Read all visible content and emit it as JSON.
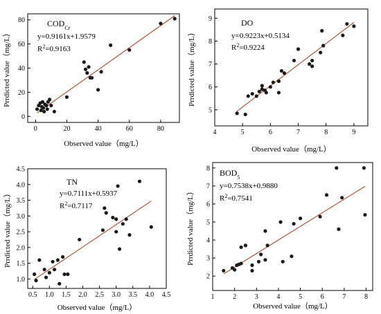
{
  "colors": {
    "point": "#1a1a1a",
    "fit_line": "#b5482a",
    "axis": "#000000",
    "background": "#ffffff"
  },
  "chart_data": [
    {
      "type": "scatter",
      "id": "codcr",
      "title": "COD",
      "title_subscript": "Cr",
      "equation": "y=0.9161x+1.9579",
      "r2_label": "R",
      "r2_sup": "2",
      "r2_value": "=0.9163",
      "xlabel": "Observed value（mg/L）",
      "ylabel": "Prrdicted value（mg/L）",
      "xlim": [
        -5,
        92
      ],
      "ylim": [
        -5,
        85
      ],
      "xticks": [
        0,
        20,
        40,
        60,
        80
      ],
      "yticks": [
        0,
        20,
        40,
        60,
        80
      ],
      "fit": {
        "slope": 0.9161,
        "intercept": 1.9579
      },
      "points": [
        {
          "x": 1,
          "y": 6
        },
        {
          "x": 2,
          "y": 9
        },
        {
          "x": 3,
          "y": 11
        },
        {
          "x": 3.5,
          "y": 5
        },
        {
          "x": 4,
          "y": 8
        },
        {
          "x": 4.5,
          "y": 12
        },
        {
          "x": 5,
          "y": 7
        },
        {
          "x": 5.5,
          "y": 4
        },
        {
          "x": 6,
          "y": 10
        },
        {
          "x": 7,
          "y": 9
        },
        {
          "x": 7.5,
          "y": 6
        },
        {
          "x": 8,
          "y": 12
        },
        {
          "x": 9,
          "y": 14
        },
        {
          "x": 10,
          "y": 9
        },
        {
          "x": 12,
          "y": 4
        },
        {
          "x": 20,
          "y": 16
        },
        {
          "x": 31,
          "y": 45
        },
        {
          "x": 32,
          "y": 39
        },
        {
          "x": 33,
          "y": 36
        },
        {
          "x": 34,
          "y": 41
        },
        {
          "x": 35,
          "y": 32
        },
        {
          "x": 36,
          "y": 32
        },
        {
          "x": 40,
          "y": 22
        },
        {
          "x": 42,
          "y": 37
        },
        {
          "x": 48,
          "y": 59
        },
        {
          "x": 60,
          "y": 55
        },
        {
          "x": 80,
          "y": 77
        },
        {
          "x": 89,
          "y": 81
        }
      ]
    },
    {
      "type": "scatter",
      "id": "do",
      "title": "DO",
      "equation": "y=0.9223x+0.5134",
      "r2_label": "R",
      "r2_sup": "2",
      "r2_value": "=0.9224",
      "xlabel": "Observed value（mg/L）",
      "ylabel": "Prrdicted value（mg/L）",
      "xlim": [
        4,
        9.5
      ],
      "ylim": [
        4.3,
        9.4
      ],
      "xticks": [
        4,
        5,
        6,
        7,
        8,
        9
      ],
      "yticks": [
        5,
        6,
        7,
        8,
        9
      ],
      "fit": {
        "slope": 0.9223,
        "intercept": 0.5134
      },
      "points": [
        {
          "x": 4.8,
          "y": 4.85
        },
        {
          "x": 5.1,
          "y": 4.8
        },
        {
          "x": 5.2,
          "y": 5.6
        },
        {
          "x": 5.35,
          "y": 5.7
        },
        {
          "x": 5.5,
          "y": 5.6
        },
        {
          "x": 5.6,
          "y": 5.8
        },
        {
          "x": 5.7,
          "y": 5.9
        },
        {
          "x": 5.7,
          "y": 6.05
        },
        {
          "x": 5.8,
          "y": 5.85
        },
        {
          "x": 5.85,
          "y": 5.75
        },
        {
          "x": 6.0,
          "y": 6.0
        },
        {
          "x": 6.1,
          "y": 6.2
        },
        {
          "x": 6.3,
          "y": 6.25
        },
        {
          "x": 6.3,
          "y": 5.75
        },
        {
          "x": 6.4,
          "y": 6.7
        },
        {
          "x": 6.5,
          "y": 6.6
        },
        {
          "x": 6.85,
          "y": 7.15
        },
        {
          "x": 7.0,
          "y": 7.65
        },
        {
          "x": 7.4,
          "y": 7.0
        },
        {
          "x": 7.5,
          "y": 7.15
        },
        {
          "x": 7.5,
          "y": 6.9
        },
        {
          "x": 7.8,
          "y": 7.5
        },
        {
          "x": 7.85,
          "y": 8.45
        },
        {
          "x": 7.9,
          "y": 7.8
        },
        {
          "x": 8.6,
          "y": 8.25
        },
        {
          "x": 8.75,
          "y": 8.75
        },
        {
          "x": 9.0,
          "y": 8.65
        }
      ]
    },
    {
      "type": "scatter",
      "id": "tn",
      "title": "TN",
      "equation": "y=0.7111x+0.5937",
      "r2_label": "R",
      "r2_sup": "2",
      "r2_value": "=0.7117",
      "xlabel": "Observed value（mg/L）",
      "ylabel": "Prrdicted value（mg/L）",
      "xlim": [
        0.35,
        4.5
      ],
      "ylim": [
        0.7,
        4.5
      ],
      "xticks": [
        0.5,
        1.0,
        1.5,
        2.0,
        2.5,
        3.0,
        3.5,
        4.0,
        4.5
      ],
      "ytick_labels": [
        "1.0",
        "1.5",
        "2.0",
        "2.5",
        "3.0",
        "3.5",
        "4.0",
        "4.5"
      ],
      "yticks": [
        1.0,
        1.5,
        2.0,
        2.5,
        3.0,
        3.5,
        4.0,
        4.5
      ],
      "xtick_labels": [
        "0.5",
        "1.0",
        "1.5",
        "2.0",
        "2.5",
        "3.0",
        "3.5",
        "4.0",
        "4.5"
      ],
      "fit": {
        "slope": 0.7111,
        "intercept": 0.5937
      },
      "points": [
        {
          "x": 0.55,
          "y": 1.15
        },
        {
          "x": 0.6,
          "y": 0.95
        },
        {
          "x": 0.7,
          "y": 1.6
        },
        {
          "x": 0.85,
          "y": 1.3
        },
        {
          "x": 0.9,
          "y": 1.05
        },
        {
          "x": 1.0,
          "y": 1.2
        },
        {
          "x": 1.1,
          "y": 1.55
        },
        {
          "x": 1.15,
          "y": 1.3
        },
        {
          "x": 1.25,
          "y": 1.6
        },
        {
          "x": 1.3,
          "y": 0.85
        },
        {
          "x": 1.4,
          "y": 1.7
        },
        {
          "x": 1.45,
          "y": 1.15
        },
        {
          "x": 1.55,
          "y": 1.15
        },
        {
          "x": 1.9,
          "y": 2.25
        },
        {
          "x": 2.6,
          "y": 2.55
        },
        {
          "x": 2.65,
          "y": 3.25
        },
        {
          "x": 2.7,
          "y": 3.1
        },
        {
          "x": 2.9,
          "y": 2.95
        },
        {
          "x": 3.0,
          "y": 2.9
        },
        {
          "x": 3.0,
          "y": 2.5
        },
        {
          "x": 3.05,
          "y": 3.95
        },
        {
          "x": 3.1,
          "y": 1.95
        },
        {
          "x": 3.2,
          "y": 2.75
        },
        {
          "x": 3.3,
          "y": 2.9
        },
        {
          "x": 3.4,
          "y": 2.4
        },
        {
          "x": 3.7,
          "y": 4.1
        },
        {
          "x": 4.05,
          "y": 2.65
        }
      ]
    },
    {
      "type": "scatter",
      "id": "bod5",
      "title": "BOD",
      "title_subscript": "5",
      "equation": "y=0.7538x+0.9880",
      "r2_label": "R",
      "r2_sup": "2",
      "r2_value": "=0.7541",
      "xlabel": "Observed value（mg/L）",
      "ylabel": "Prrdicted value（mg/L）",
      "xlim": [
        1,
        8.3
      ],
      "ylim": [
        1.2,
        8.3
      ],
      "xticks": [
        1,
        2,
        3,
        4,
        5,
        6,
        7,
        8
      ],
      "yticks": [
        2,
        3,
        4,
        5,
        6,
        7,
        8
      ],
      "fit": {
        "slope": 0.7538,
        "intercept": 0.988
      },
      "points": [
        {
          "x": 1.5,
          "y": 2.3
        },
        {
          "x": 1.9,
          "y": 2.45
        },
        {
          "x": 2.0,
          "y": 2.35
        },
        {
          "x": 2.1,
          "y": 2.6
        },
        {
          "x": 2.2,
          "y": 2.65
        },
        {
          "x": 2.3,
          "y": 2.7
        },
        {
          "x": 2.3,
          "y": 3.6
        },
        {
          "x": 2.5,
          "y": 3.7
        },
        {
          "x": 2.8,
          "y": 2.6
        },
        {
          "x": 2.8,
          "y": 2.3
        },
        {
          "x": 3.1,
          "y": 2.8
        },
        {
          "x": 3.2,
          "y": 3.2
        },
        {
          "x": 3.4,
          "y": 2.9
        },
        {
          "x": 3.4,
          "y": 4.5
        },
        {
          "x": 3.5,
          "y": 3.7
        },
        {
          "x": 4.1,
          "y": 5.0
        },
        {
          "x": 4.2,
          "y": 2.8
        },
        {
          "x": 4.6,
          "y": 3.1
        },
        {
          "x": 4.7,
          "y": 4.9
        },
        {
          "x": 5.0,
          "y": 5.2
        },
        {
          "x": 5.9,
          "y": 5.3
        },
        {
          "x": 6.2,
          "y": 6.5
        },
        {
          "x": 6.65,
          "y": 8.0
        },
        {
          "x": 6.75,
          "y": 4.6
        },
        {
          "x": 6.9,
          "y": 6.35
        },
        {
          "x": 7.9,
          "y": 8.0
        },
        {
          "x": 7.95,
          "y": 5.4
        }
      ]
    }
  ]
}
